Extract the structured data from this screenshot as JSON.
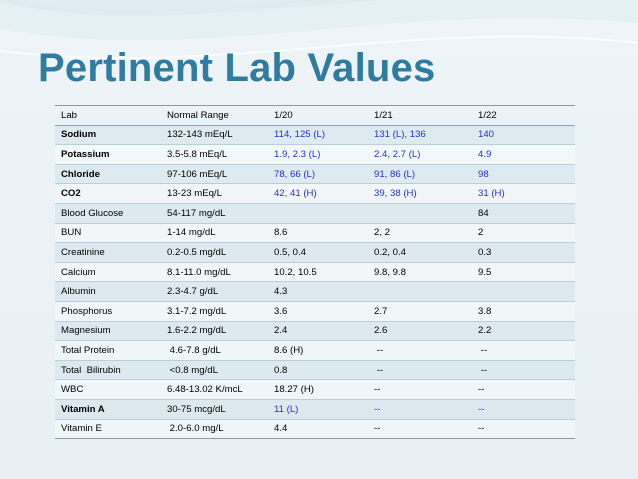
{
  "slide": {
    "title": "Pertinent Lab Values",
    "colors": {
      "title": "#2f7ca0",
      "highlight_text": "#2332c8",
      "background": "#eef4f7"
    }
  },
  "table": {
    "headers": [
      "Lab",
      "Normal Range",
      "1/20",
      "1/21",
      "1/22"
    ],
    "rows": [
      {
        "lab": "Sodium",
        "range": "132-143 mEq/L",
        "d120": "114, 125 (L)",
        "d121": "131 (L), 136",
        "d122": "140"
      },
      {
        "lab": "Potassium",
        "range": "3.5-5.8 mEq/L",
        "d120": "1.9, 2.3 (L)",
        "d121": "2.4, 2.7 (L)",
        "d122": "4.9"
      },
      {
        "lab": "Chloride",
        "range": "97-106 mEq/L",
        "d120": "78, 66 (L)",
        "d121": "91, 86 (L)",
        "d122": "98"
      },
      {
        "lab": "CO2",
        "range": "13-23 mEq/L",
        "d120": "42, 41 (H)",
        "d121": "39, 38 (H)",
        "d122": "31 (H)"
      },
      {
        "lab": "Blood Glucose",
        "range": "54-117 mg/dL",
        "d120": "",
        "d121": "",
        "d122": "84"
      },
      {
        "lab": "BUN",
        "range": "1-14 mg/dL",
        "d120": "8.6",
        "d121": "2, 2",
        "d122": "2"
      },
      {
        "lab": "Creatinine",
        "range": "0.2-0.5 mg/dL",
        "d120": "0.5, 0.4",
        "d121": "0.2, 0.4",
        "d122": "0.3"
      },
      {
        "lab": "Calcium",
        "range": "8.1-11.0 mg/dL",
        "d120": "10.2, 10.5",
        "d121": "9.8, 9.8",
        "d122": "9.5"
      },
      {
        "lab": "Albumin",
        "range": "2.3-4.7 g/dL",
        "d120": "4.3",
        "d121": "",
        "d122": ""
      },
      {
        "lab": "Phosphorus",
        "range": "3.1-7.2 mg/dL",
        "d120": "3.6",
        "d121": "2.7",
        "d122": "3.8"
      },
      {
        "lab": "Magnesium",
        "range": "1.6-2.2 mg/dL",
        "d120": "2.4",
        "d121": "2.6",
        "d122": "2.2"
      },
      {
        "lab": "Total Protein",
        "range": " 4.6-7.8 g/dL",
        "d120": "8.6 (H)",
        "d121": " --",
        "d122": " --"
      },
      {
        "lab": "Total  Bilirubin",
        "range": " <0.8 mg/dL",
        "d120": "0.8",
        "d121": " --",
        "d122": " --"
      },
      {
        "lab": "WBC",
        "range": "6.48-13.02 K/mcL",
        "d120": "18.27 (H)",
        "d121": "--",
        "d122": "--"
      },
      {
        "lab": "Vitamin A",
        "range": "30-75 mcg/dL",
        "d120": "11 (L)",
        "d121": "--",
        "d122": "--"
      },
      {
        "lab": "Vitamin E",
        "range": " 2.0-6.0 mg/L",
        "d120": "4.4",
        "d121": "--",
        "d122": "--"
      }
    ]
  }
}
